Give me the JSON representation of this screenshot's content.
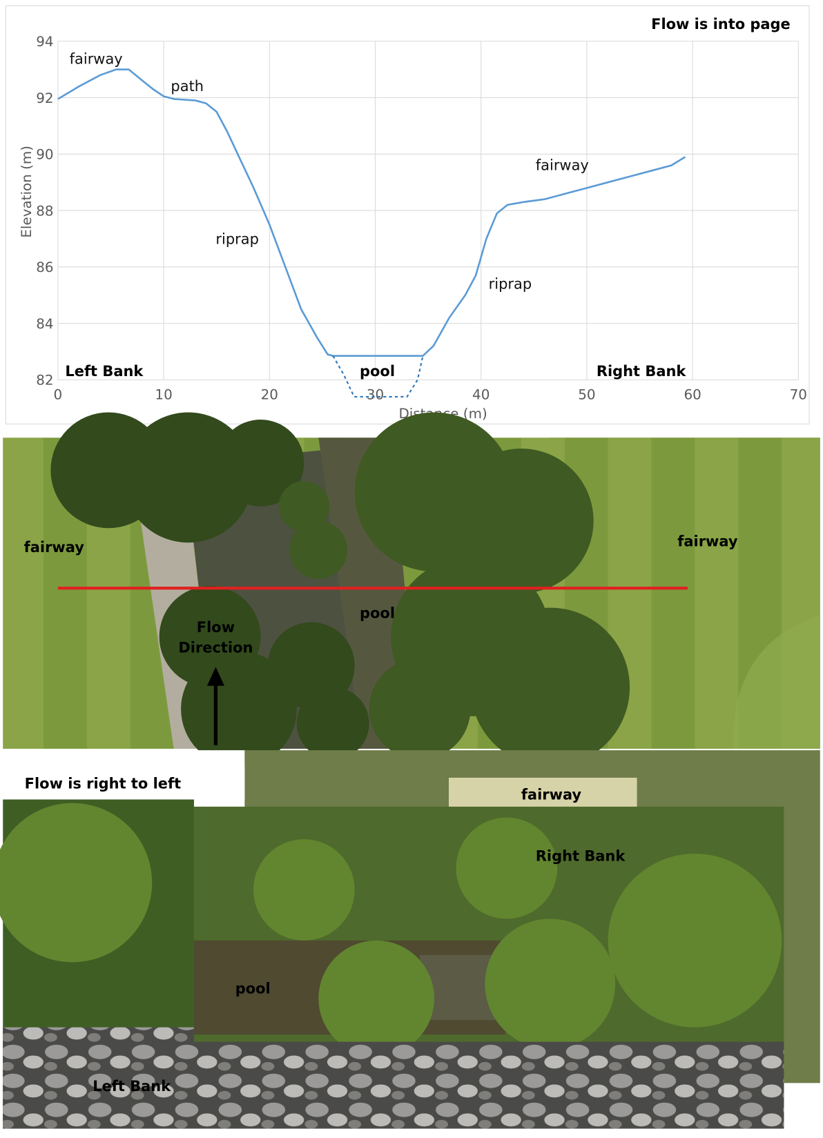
{
  "chart_data": {
    "type": "line",
    "title": "Flow is into page",
    "x_label": "Distance (m)",
    "y_label": "Elevation (m)",
    "xlim": [
      0,
      70
    ],
    "xticks": [
      0,
      10,
      20,
      30,
      40,
      50,
      60,
      70
    ],
    "ylim": [
      82,
      94
    ],
    "yticks": [
      82,
      84,
      86,
      88,
      90,
      92,
      94
    ],
    "grid": true,
    "series": [
      {
        "color": "#5b9bd5",
        "dashed": false,
        "x": [
          0,
          2,
          4,
          5.5,
          6.7,
          8,
          9,
          10,
          11,
          13,
          14,
          15,
          16,
          17,
          18.5,
          20,
          21.5,
          23,
          24.5,
          25.5,
          26,
          34.5,
          35.5,
          37,
          38.5,
          39.5,
          40.5,
          41.5,
          42.5,
          44,
          46,
          48,
          50,
          52,
          54,
          56,
          58,
          59.3
        ],
        "values": [
          91.95,
          92.4,
          92.8,
          93.0,
          93.0,
          92.6,
          92.3,
          92.05,
          91.95,
          91.9,
          91.8,
          91.5,
          90.8,
          90.0,
          88.8,
          87.5,
          86.0,
          84.5,
          83.5,
          82.9,
          82.85,
          82.85,
          83.2,
          84.2,
          85.0,
          85.7,
          87.0,
          87.9,
          88.2,
          88.3,
          88.4,
          88.6,
          88.8,
          89.0,
          89.2,
          89.4,
          89.6,
          89.9
        ]
      },
      {
        "color": "#2e75b6",
        "dashed": true,
        "x": [
          26,
          27,
          28,
          33,
          34,
          34.5
        ],
        "values": [
          82.85,
          82.2,
          81.4,
          81.4,
          82.0,
          82.85
        ]
      }
    ],
    "annotations": [
      "fairway",
      "path",
      "riprap",
      "riprap",
      "fairway",
      "Left Bank",
      "pool",
      "Right Bank"
    ]
  },
  "aerial_photo": {
    "labels": [
      "fairway",
      "fairway",
      "pool"
    ],
    "flow_label": [
      "Flow",
      "Direction"
    ]
  },
  "ground_photo": {
    "caption": "Flow is right to left",
    "labels": [
      "fairway",
      "Right Bank",
      "pool",
      "Left Bank"
    ]
  }
}
